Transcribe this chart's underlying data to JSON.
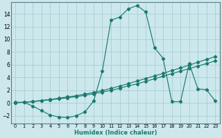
{
  "xlabel": "Humidex (Indice chaleur)",
  "ylabel": "",
  "xlim": [
    -0.5,
    23.5
  ],
  "ylim": [
    -3.2,
    15.8
  ],
  "yticks": [
    -2,
    0,
    2,
    4,
    6,
    8,
    10,
    12,
    14
  ],
  "xticks": [
    0,
    1,
    2,
    3,
    4,
    5,
    6,
    7,
    8,
    9,
    10,
    11,
    12,
    13,
    14,
    15,
    16,
    17,
    18,
    19,
    20,
    21,
    22,
    23
  ],
  "bg_color": "#cce8ec",
  "grid_color": "#aacdd4",
  "line_color": "#1a7a6e",
  "curve1_x": [
    0,
    1,
    2,
    3,
    4,
    5,
    6,
    7,
    8,
    9,
    10,
    11,
    12,
    13,
    14,
    15,
    16,
    17,
    18,
    19,
    20,
    21,
    22,
    23
  ],
  "curve1_y": [
    0.1,
    0.1,
    -0.5,
    -1.2,
    -1.9,
    -2.2,
    -2.3,
    -2.0,
    -1.4,
    0.3,
    5.0,
    13.0,
    13.5,
    14.8,
    15.3,
    14.3,
    8.7,
    7.0,
    0.2,
    0.2,
    6.2,
    2.2,
    2.1,
    0.3
  ],
  "curve2_x": [
    0,
    1,
    2,
    3,
    4,
    5,
    6,
    7,
    8,
    9,
    10,
    11,
    12,
    13,
    14,
    15,
    16,
    17,
    18,
    19,
    20,
    21,
    22,
    23
  ],
  "curve2_y": [
    0.05,
    0.1,
    0.2,
    0.35,
    0.5,
    0.65,
    0.8,
    1.0,
    1.2,
    1.45,
    1.7,
    2.0,
    2.3,
    2.7,
    3.0,
    3.4,
    3.8,
    4.2,
    4.6,
    5.0,
    5.4,
    5.8,
    6.2,
    6.6
  ],
  "curve3_x": [
    0,
    1,
    2,
    3,
    4,
    5,
    6,
    7,
    8,
    9,
    10,
    11,
    12,
    13,
    14,
    15,
    16,
    17,
    18,
    19,
    20,
    21,
    22,
    23
  ],
  "curve3_y": [
    0.05,
    0.1,
    0.25,
    0.4,
    0.55,
    0.75,
    0.95,
    1.15,
    1.4,
    1.65,
    1.95,
    2.3,
    2.65,
    3.05,
    3.45,
    3.85,
    4.25,
    4.65,
    5.1,
    5.5,
    5.95,
    6.4,
    6.85,
    7.3
  ]
}
